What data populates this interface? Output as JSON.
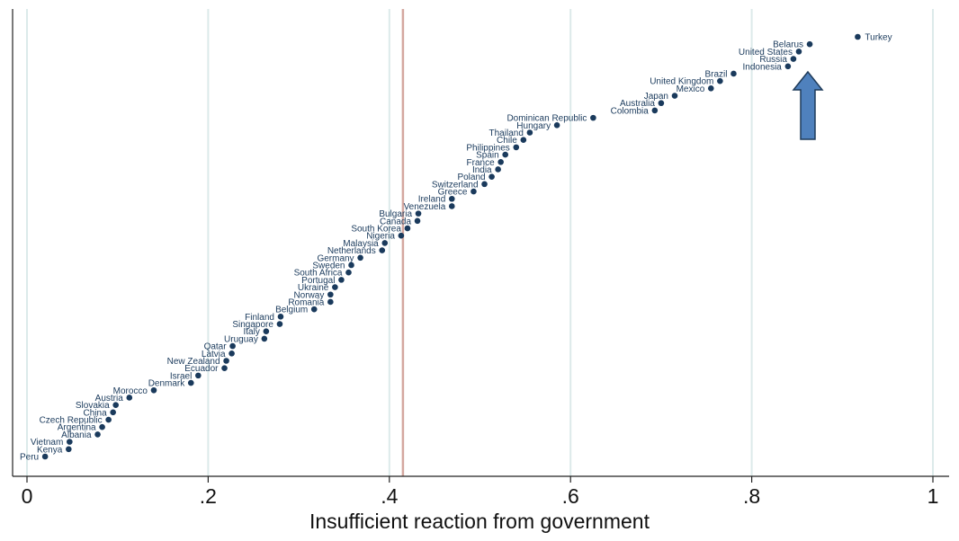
{
  "chart_data": {
    "type": "scatter",
    "xlabel": "Insufficient reaction from government",
    "xlim": [
      0,
      1
    ],
    "x_ticks": [
      "0",
      ".2",
      ".4",
      ".6",
      ".8",
      "1"
    ],
    "x_tick_values": [
      0,
      0.2,
      0.4,
      0.6,
      0.8,
      1
    ],
    "grid": "vertical",
    "reference_line_x": 0.415,
    "colors": {
      "point": "#1a3a5c",
      "label": "#1a3a5c",
      "grid": "#dceaea",
      "reference_line": "#d4a8a0",
      "arrow_fill": "#4f81bd",
      "arrow_stroke": "#1f3b5a"
    },
    "points": [
      {
        "label": "Turkey",
        "x": 0.917
      },
      {
        "label": "Belarus",
        "x": 0.864
      },
      {
        "label": "United States",
        "x": 0.852
      },
      {
        "label": "Russia",
        "x": 0.846
      },
      {
        "label": "Indonesia",
        "x": 0.84
      },
      {
        "label": "Brazil",
        "x": 0.78
      },
      {
        "label": "United Kingdom",
        "x": 0.765
      },
      {
        "label": "Mexico",
        "x": 0.755
      },
      {
        "label": "Japan",
        "x": 0.715
      },
      {
        "label": "Australia",
        "x": 0.7
      },
      {
        "label": "Colombia",
        "x": 0.693
      },
      {
        "label": "Dominican Republic",
        "x": 0.625
      },
      {
        "label": "Hungary",
        "x": 0.585
      },
      {
        "label": "Thailand",
        "x": 0.555
      },
      {
        "label": "Chile",
        "x": 0.548
      },
      {
        "label": "Philippines",
        "x": 0.54
      },
      {
        "label": "Spain",
        "x": 0.528
      },
      {
        "label": "France",
        "x": 0.523
      },
      {
        "label": "India",
        "x": 0.52
      },
      {
        "label": "Poland",
        "x": 0.513
      },
      {
        "label": "Switzerland",
        "x": 0.505
      },
      {
        "label": "Greece",
        "x": 0.493
      },
      {
        "label": "Ireland",
        "x": 0.469
      },
      {
        "label": "Venezuela",
        "x": 0.469
      },
      {
        "label": "Bulgaria",
        "x": 0.432
      },
      {
        "label": "Canada",
        "x": 0.431
      },
      {
        "label": "South Korea",
        "x": 0.42
      },
      {
        "label": "Nigeria",
        "x": 0.413
      },
      {
        "label": "Malaysia",
        "x": 0.395
      },
      {
        "label": "Netherlands",
        "x": 0.392
      },
      {
        "label": "Germany",
        "x": 0.368
      },
      {
        "label": "Sweden",
        "x": 0.358
      },
      {
        "label": "South Africa",
        "x": 0.355
      },
      {
        "label": "Portugal",
        "x": 0.347
      },
      {
        "label": "Ukraine",
        "x": 0.34
      },
      {
        "label": "Norway",
        "x": 0.335
      },
      {
        "label": "Romania",
        "x": 0.335
      },
      {
        "label": "Belgium",
        "x": 0.317
      },
      {
        "label": "Finland",
        "x": 0.28
      },
      {
        "label": "Singapore",
        "x": 0.279
      },
      {
        "label": "Italy",
        "x": 0.264
      },
      {
        "label": "Uruguay",
        "x": 0.262
      },
      {
        "label": "Qatar",
        "x": 0.227
      },
      {
        "label": "Latvia",
        "x": 0.226
      },
      {
        "label": "New Zealand",
        "x": 0.22
      },
      {
        "label": "Ecuador",
        "x": 0.218
      },
      {
        "label": "Israel",
        "x": 0.189
      },
      {
        "label": "Denmark",
        "x": 0.181
      },
      {
        "label": "Morocco",
        "x": 0.14
      },
      {
        "label": "Austria",
        "x": 0.113
      },
      {
        "label": "Slovakia",
        "x": 0.098
      },
      {
        "label": "China",
        "x": 0.095
      },
      {
        "label": "Czech Republic",
        "x": 0.09
      },
      {
        "label": "Argentina",
        "x": 0.083
      },
      {
        "label": "Albania",
        "x": 0.078
      },
      {
        "label": "Vietnam",
        "x": 0.047
      },
      {
        "label": "Kenya",
        "x": 0.046
      },
      {
        "label": "Peru",
        "x": 0.02
      }
    ]
  }
}
